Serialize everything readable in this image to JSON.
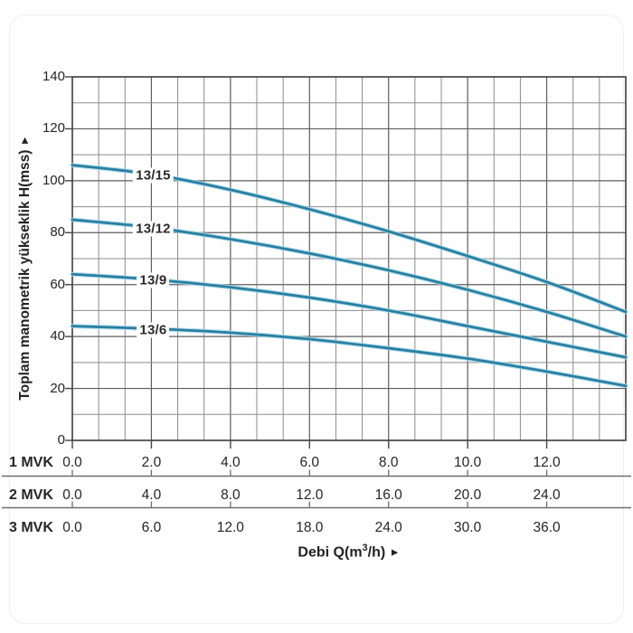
{
  "y_axis": {
    "title": "Toplam manometrik yükseklik H(mss)",
    "arrow": "►",
    "tick_labels": [
      "140",
      "120",
      "100",
      "80",
      "60",
      "40",
      "20",
      "0"
    ],
    "tick_values": [
      140,
      120,
      100,
      80,
      60,
      40,
      20,
      0
    ]
  },
  "x_axis": {
    "title_prefix": "Debi Q(m",
    "title_sup": "3",
    "title_suffix": "/h)",
    "arrow": "►"
  },
  "rows": [
    {
      "label": "1 MVK",
      "values": [
        "0.0",
        "2.0",
        "4.0",
        "6.0",
        "8.0",
        "10.0",
        "12.0"
      ]
    },
    {
      "label": "2 MVK",
      "values": [
        "0.0",
        "4.0",
        "8.0",
        "12.0",
        "16.0",
        "20.0",
        "24.0"
      ]
    },
    {
      "label": "3 MVK",
      "values": [
        "0.0",
        "6.0",
        "12.0",
        "18.0",
        "24.0",
        "30.0",
        "36.0"
      ]
    }
  ],
  "chart_data": {
    "type": "line",
    "title": "",
    "xlabel": "Debi Q(m³/h)",
    "ylabel": "Toplam manometrik yükseklik H(mss)",
    "xlim": [
      0,
      14
    ],
    "ylim": [
      0,
      140
    ],
    "y_minor_step": 10,
    "y_major_step": 20,
    "x_minor_step": 0.6667,
    "x_major_step": 2,
    "grid": true,
    "legend_position": "on-curve",
    "x": [
      0,
      2,
      4,
      6,
      8,
      10,
      12,
      14
    ],
    "series": [
      {
        "name": "13/15",
        "values": [
          106,
          102.5,
          96.5,
          89,
          80.5,
          71,
          61,
          49.5
        ]
      },
      {
        "name": "13/12",
        "values": [
          85,
          82,
          77.5,
          72,
          65.5,
          58,
          49.5,
          40
        ]
      },
      {
        "name": "13/9",
        "values": [
          64,
          62,
          59,
          55,
          50,
          44,
          38,
          32
        ]
      },
      {
        "name": "13/6",
        "values": [
          44,
          43,
          41.5,
          39,
          35.5,
          31.5,
          26.5,
          21
        ]
      }
    ],
    "x_scales": {
      "1 MVK": [
        0,
        2,
        4,
        6,
        8,
        10,
        12
      ],
      "2 MVK": [
        0,
        4,
        8,
        12,
        16,
        20,
        24
      ],
      "3 MVK": [
        0,
        6,
        12,
        18,
        24,
        30,
        36
      ]
    }
  },
  "colors": {
    "curve": "#2a7fa2",
    "curve_halo": "#a9dbe9",
    "grid_minor": "#8d8d8d",
    "grid_major": "#5e5e5e",
    "plot_border": "#454545",
    "separator": "#6e6e6e",
    "text": "#1f1f1f",
    "background": "#fefefe"
  }
}
